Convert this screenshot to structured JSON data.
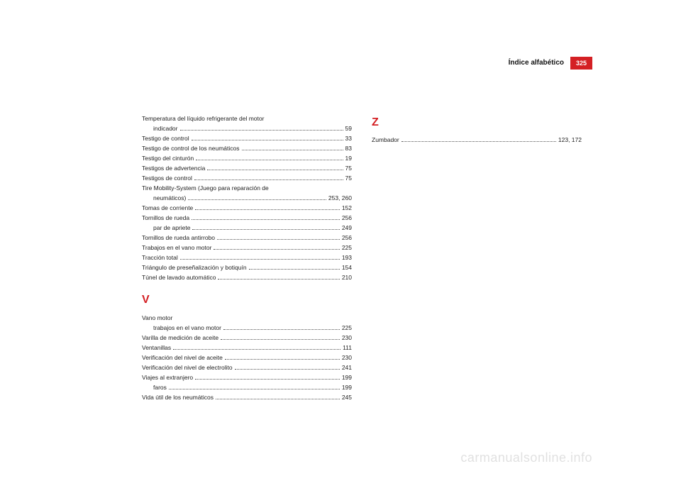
{
  "header": {
    "title": "Índice alfabético",
    "page_number": "325",
    "tab_bg": "#d42024",
    "tab_fg": "#ffffff"
  },
  "col1": {
    "entries": [
      {
        "label": "Temperatura del líquido refrigerante del motor",
        "page": "",
        "nodots": true
      },
      {
        "label": "indicador",
        "page": "59",
        "sub": true
      },
      {
        "label": "Testigo de control",
        "page": "33"
      },
      {
        "label": "Testigo de control de los neumáticos",
        "page": "83"
      },
      {
        "label": "Testigo del cinturón",
        "page": "19"
      },
      {
        "label": "Testigos de advertencia",
        "page": "75"
      },
      {
        "label": "Testigos de control",
        "page": "75"
      },
      {
        "label": "Tire Mobility-System (Juego para reparación de",
        "page": "",
        "nodots": true
      },
      {
        "label": "neumáticos)",
        "page": "253, 260",
        "sub": true
      },
      {
        "label": "Tomas de corriente",
        "page": "152"
      },
      {
        "label": "Tornillos de rueda",
        "page": "256"
      },
      {
        "label": "par de apriete",
        "page": "249",
        "sub": true
      },
      {
        "label": "Tornillos de rueda antirrobo",
        "page": "256"
      },
      {
        "label": "Trabajos en el vano motor",
        "page": "225"
      },
      {
        "label": "Tracción total",
        "page": "193"
      },
      {
        "label": "Triángulo de preseñalización y botiquín",
        "page": "154"
      },
      {
        "label": "Túnel de lavado automático",
        "page": "210"
      }
    ],
    "section_v": "V",
    "entries_v": [
      {
        "label": "Vano motor",
        "page": "",
        "nodots": true
      },
      {
        "label": "trabajos en el vano motor",
        "page": "225",
        "sub": true
      },
      {
        "label": "Varilla de medición de aceite",
        "page": "230"
      },
      {
        "label": "Ventanillas",
        "page": "111"
      },
      {
        "label": "Verificación del nivel de aceite",
        "page": "230"
      },
      {
        "label": "Verificación del nivel de electrolito",
        "page": "241"
      },
      {
        "label": "Viajes al extranjero",
        "page": "199"
      },
      {
        "label": "faros",
        "page": "199",
        "sub": true
      },
      {
        "label": "Vida útil de los neumáticos",
        "page": "245"
      }
    ]
  },
  "col2": {
    "section_z": "Z",
    "entries_z": [
      {
        "label": "Zumbador",
        "page": "123, 172"
      }
    ]
  },
  "watermark": "carmanualsonline.info"
}
